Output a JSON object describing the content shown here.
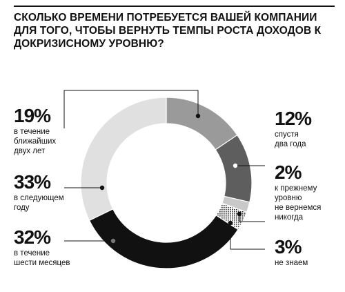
{
  "title": "СКОЛЬКО ВРЕМЕНИ ПОТРЕБУЕТСЯ ВАШЕЙ КОМПАНИИ ДЛЯ ТОГО, ЧТОБЫ ВЕРНУТЬ ТЕМПЫ РОСТА ДОХОДОВ К ДОКРИЗИСНОМУ УРОВНЮ?",
  "colors": {
    "seg_two_years": "#9a9a9a",
    "seg_next_year": "#e0e0e0",
    "seg_six_months": "#111111",
    "seg_never": "#c9c9c9",
    "seg_unknown": "#3a3a3a",
    "seg_19": "#5e5e5e"
  },
  "chart_data": {
    "type": "pie",
    "donut": true,
    "slices": [
      {
        "label": "спустя два года",
        "pct_text": "12%",
        "value": 12,
        "color": "#9a9a9a"
      },
      {
        "label": "в течение ближайших двух лет",
        "pct_text": "19%",
        "value": 19,
        "color": "#5e5e5e"
      },
      {
        "label": "к прежнему уровню не вернемся никогда",
        "pct_text": "2%",
        "value": 2,
        "color": "#c9c9c9"
      },
      {
        "label": "не знаем",
        "pct_text": "3%",
        "value": 3,
        "color": "#3a3a3a"
      },
      {
        "label": "в течение шести месяцев",
        "pct_text": "32%",
        "value": 32,
        "color": "#111111"
      },
      {
        "label": "в следующем году",
        "pct_text": "33%",
        "value": 33,
        "color": "#e0e0e0"
      }
    ]
  },
  "labels": {
    "s19": {
      "pct": "19%",
      "desc": "в течение\nближайших\nдвух лет"
    },
    "s33": {
      "pct": "33%",
      "desc": "в следующем\nгоду"
    },
    "s32": {
      "pct": "32%",
      "desc": "в течение\nшести месяцев"
    },
    "s12": {
      "pct": "12%",
      "desc": "спустя\nдва года"
    },
    "s2": {
      "pct": "2%",
      "desc": "к прежнему\nуровню\nне вернемся\nникогда"
    },
    "s3": {
      "pct": "3%",
      "desc": "не знаем"
    }
  }
}
